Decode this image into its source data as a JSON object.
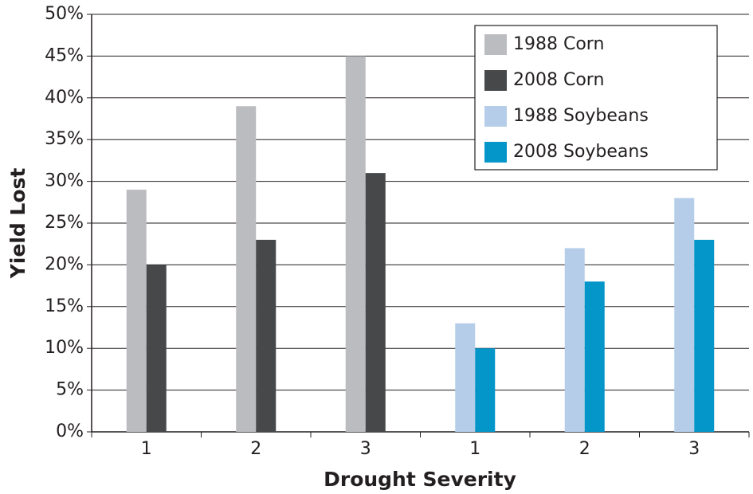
{
  "chart_data": {
    "type": "bar",
    "x_label": "Drought Severity",
    "y_label": "Yield Lost",
    "categories": [
      "1",
      "2",
      "3",
      "1",
      "2",
      "3"
    ],
    "series": [
      {
        "name": "1988 Corn",
        "color": "#bbbcbf",
        "values": [
          29,
          39,
          45,
          null,
          null,
          null
        ]
      },
      {
        "name": "2008 Corn",
        "color": "#47484a",
        "values": [
          20,
          23,
          31,
          null,
          null,
          null
        ]
      },
      {
        "name": "1988 Soybeans",
        "color": "#b5cde8",
        "values": [
          null,
          null,
          null,
          13,
          22,
          28
        ]
      },
      {
        "name": "2008 Soybeans",
        "color": "#0596c9",
        "values": [
          null,
          null,
          null,
          10,
          18,
          23
        ]
      }
    ],
    "ylim": [
      0,
      50
    ],
    "yticks": [
      {
        "value": 0,
        "label": "0%"
      },
      {
        "value": 5,
        "label": "5%"
      },
      {
        "value": 10,
        "label": "10%"
      },
      {
        "value": 15,
        "label": "15%"
      },
      {
        "value": 20,
        "label": "20%"
      },
      {
        "value": 25,
        "label": "25%"
      },
      {
        "value": 30,
        "label": "30%"
      },
      {
        "value": 35,
        "label": "35%"
      },
      {
        "value": 40,
        "label": "40%"
      },
      {
        "value": 45,
        "label": "45%"
      },
      {
        "value": 50,
        "label": "50%"
      }
    ],
    "grid": true,
    "legend": "upper right"
  }
}
